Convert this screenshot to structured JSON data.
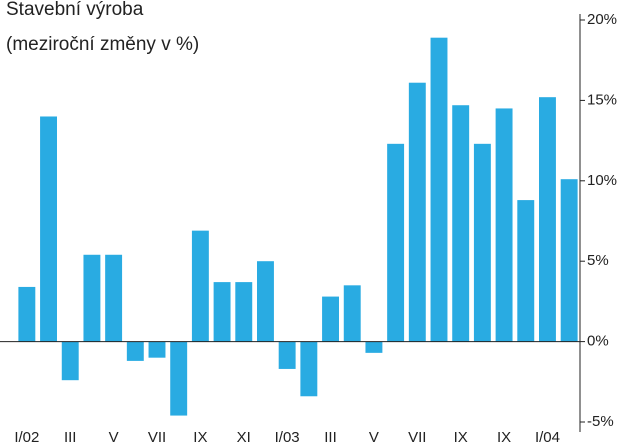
{
  "chart_data": {
    "type": "bar",
    "title": "Stavební výroba",
    "subtitle": "(meziroční změny v %)",
    "categories": [
      "I/02",
      null,
      "III",
      null,
      "V",
      null,
      "VII",
      null,
      "IX",
      null,
      "XI",
      null,
      "I/03",
      null,
      "III",
      null,
      "V",
      null,
      "VII",
      null,
      "IX",
      null,
      "IX",
      null,
      "I/04",
      null
    ],
    "values": [
      3.4,
      14.0,
      -2.4,
      5.4,
      5.4,
      -1.2,
      -1.0,
      -4.6,
      6.9,
      3.7,
      3.7,
      5.0,
      -1.7,
      -3.4,
      2.8,
      3.5,
      -0.7,
      12.3,
      16.1,
      18.9,
      14.7,
      12.3,
      14.5,
      8.8,
      15.2,
      10.1
    ],
    "color": "#29abe2",
    "ylim": [
      -5,
      20
    ],
    "yticks": [
      {
        "value": -5,
        "label": "-5%"
      },
      {
        "value": 0,
        "label": "0%"
      },
      {
        "value": 5,
        "label": "5%"
      },
      {
        "value": 10,
        "label": "10%"
      },
      {
        "value": 15,
        "label": "15%"
      },
      {
        "value": 20,
        "label": "20%"
      }
    ]
  }
}
